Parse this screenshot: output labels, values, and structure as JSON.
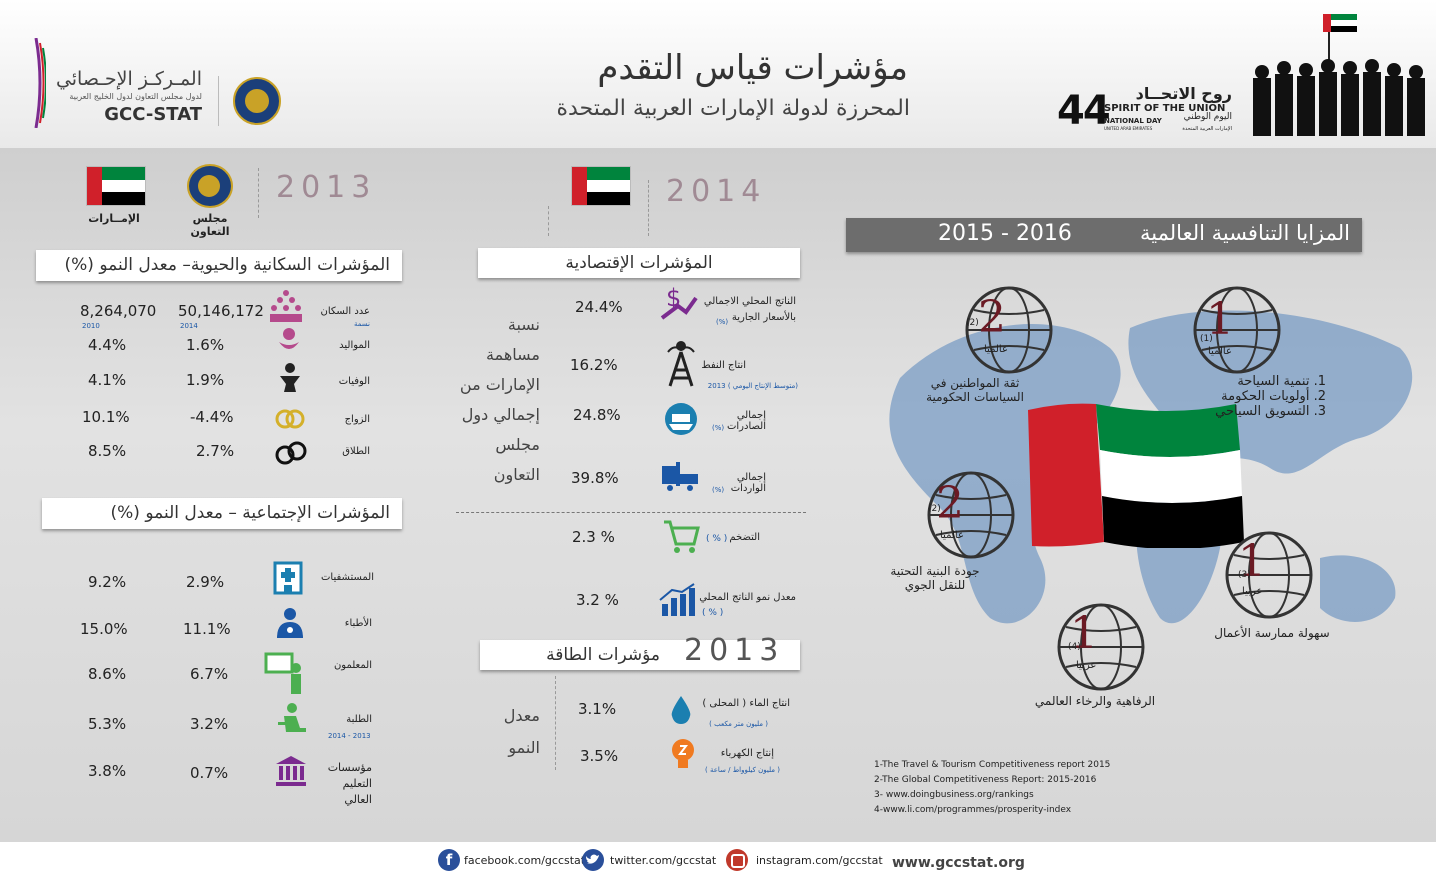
{
  "header": {
    "title": "مؤشرات قياس التقدم",
    "subtitle": "المحرزة لدولة الإمارات العربية المتحدة",
    "gcc_stat_ar": "المـركـز الإحـصائي",
    "gcc_stat_sub": "لدول مجلس التعاون لدول الخليج العربية",
    "gcc_stat_en": "GCC-STAT",
    "nd_number": "44",
    "nd_ar_title": "روح الاتحــاد",
    "nd_en_title": "SPIRIT OF THE UNION",
    "nd_ar_sub": "اليوم الوطني",
    "nd_en_sub": "NATIONAL DAY",
    "nd_country_en": "UNITED ARAB EMIRATES",
    "nd_country_ar": "الإمارات العربية المتحدة"
  },
  "left": {
    "year": "2013",
    "col_uae": "الإمــارات",
    "col_gcc": "مجلس التعاون",
    "demo_title": "المؤشرات السكانية والحيوية– معدل النمو (%)",
    "demo_rows": [
      {
        "label": "عدد السكان",
        "sub": "نسمة",
        "gcc": "50,146,172",
        "gcc_year": "2014",
        "uae": "8,264,070",
        "uae_year": "2010"
      },
      {
        "label": "المواليد",
        "gcc": "1.6%",
        "uae": "4.4%"
      },
      {
        "label": "الوفيات",
        "gcc": "1.9%",
        "uae": "4.1%"
      },
      {
        "label": "الزواج",
        "gcc": "-4.4%",
        "uae": "10.1%"
      },
      {
        "label": "الطلاق",
        "gcc": "2.7%",
        "uae": "8.5%"
      }
    ],
    "social_title": "المؤشرات الإجتماعية – معدل النمو (%)",
    "social_rows": [
      {
        "label": "المستشفيات",
        "gcc": "2.9%",
        "uae": "9.2%"
      },
      {
        "label": "الأطباء",
        "gcc": "11.1%",
        "uae": "15.0%"
      },
      {
        "label": "المعلمون",
        "gcc": "6.7%",
        "uae": "8.6%"
      },
      {
        "label": "الطلبة",
        "sub": "2014 - 2013",
        "gcc": "3.2%",
        "uae": "5.3%"
      },
      {
        "label": "مؤسسات التعليم العالي",
        "gcc": "0.7%",
        "uae": "3.8%"
      }
    ]
  },
  "middle": {
    "year": "2014",
    "econ_title": "المؤشرات الإقتصادية",
    "share_text": [
      "نسبة",
      "مساهمة",
      "الإمارات من",
      "إجمالي دول",
      "مجلس",
      "التعاون"
    ],
    "econ_rows": [
      {
        "label": "الناتج المحلي الاجمالي",
        "label2": "بالأسعار الجارية",
        "sub": "(%)",
        "value": "24.4%"
      },
      {
        "label": "انتاج النفط",
        "sub": "(متوسط الإنتاج اليومي ) 2013",
        "value": "16.2%"
      },
      {
        "label": "إجمالي الصادرات",
        "sub": "(%)",
        "value": "24.8%"
      },
      {
        "label": "إجمالي الواردات",
        "sub": "(%)",
        "value": "39.8%"
      },
      {
        "label": "التضخم",
        "sub": "( % )",
        "value": "2.3 %"
      },
      {
        "label": "معدل نمو الناتج المحلي",
        "sub": "( % )",
        "value": "3.2 %"
      }
    ],
    "energy_year": "2013",
    "energy_title": "مؤشرات الطاقة",
    "growth_text": [
      "معدل",
      "النمو"
    ],
    "energy_rows": [
      {
        "label": "انتاج الماء ( المحلى )",
        "sub": "( مليون متر مكعب )",
        "value": "3.1%"
      },
      {
        "label": "إنتاج الكهرباء",
        "sub": "( مليون كيلوواط / ساعة )",
        "value": "3.5%"
      }
    ]
  },
  "right": {
    "title": "المزايا التنافسية العالمية",
    "years": "2016 - 2015",
    "ranks": [
      {
        "rank": "1",
        "ref": "(1)",
        "scope": "عالميا",
        "items": [
          "1. تنمية السياحة",
          "2. أولويات الحكومة",
          "3. التسويق السياحي"
        ]
      },
      {
        "rank": "2",
        "ref": "(2)",
        "scope": "عالميا",
        "label": "ثقة المواطنين في السياسات الحكومية"
      },
      {
        "rank": "2",
        "ref": "(2)",
        "scope": "عالميا",
        "label": "جودة البنية التحتية للنقل الجوي"
      },
      {
        "rank": "1",
        "ref": "(3)",
        "scope": "عربيا",
        "label": "سهولة ممارسة الأعمال"
      },
      {
        "rank": "1",
        "ref": "(4)",
        "scope": "عربيا",
        "label": "الرفاهية والرخاء العالمي"
      }
    ],
    "references": [
      "1-The Travel & Tourism Competitiveness report 2015",
      "2-The Global Competitiveness Report: 2015-2016",
      "3- www.doingbusiness.org/rankings",
      "4-www.li.com/programmes/prosperity-index"
    ]
  },
  "footer": {
    "facebook": "facebook.com/gccstat",
    "twitter": "twitter.com/gccstat",
    "instagram": "instagram.com/gccstat",
    "website": "www.gccstat.org"
  },
  "colors": {
    "uae_red": "#d0202a",
    "uae_green": "#00843d",
    "uae_black": "#000000",
    "rank_red": "#6b1a24",
    "accent_blue": "#1b57a6",
    "icon_purple": "#7b2b8f",
    "icon_green": "#4caf50"
  }
}
